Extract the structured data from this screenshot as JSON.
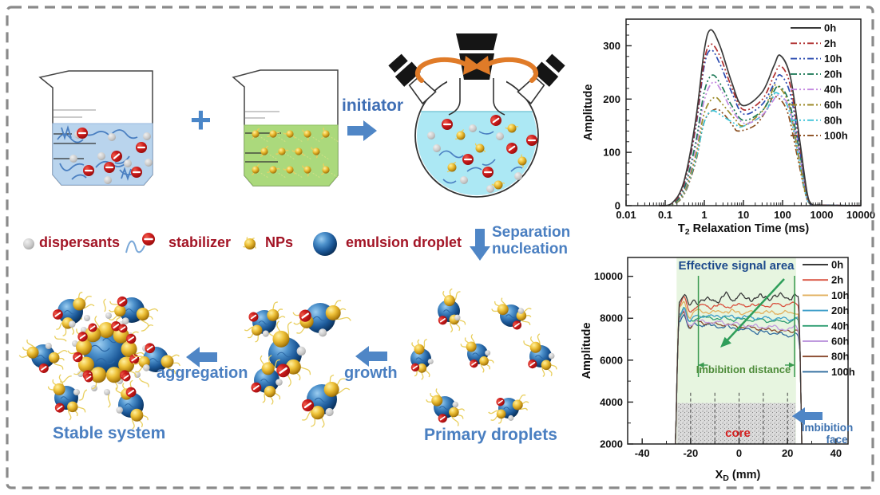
{
  "figure": {
    "border_color": "#8a8a8a",
    "background": "#ffffff"
  },
  "diagram": {
    "plus": "+",
    "initiator_label": "initiator",
    "legend": [
      {
        "label": "dispersants"
      },
      {
        "label": "stabilizer"
      },
      {
        "label": "NPs"
      },
      {
        "label": "emulsion droplet"
      }
    ],
    "separation_line1": "Separation",
    "separation_line2": "nucleation",
    "aggregation_label": "aggregation",
    "growth_label": "growth",
    "stable_system_label": "Stable system",
    "primary_droplets_label": "Primary droplets",
    "label_colors": {
      "red": "#a31526",
      "blue": "#4a7fc1",
      "arrow": "#4f86c6"
    }
  },
  "chart_data": [
    {
      "type": "line",
      "id": "t2-distribution",
      "xlabel": {
        "pre": "T",
        "sub": "2",
        "post": " Relaxation Time (ms)"
      },
      "ylabel": "Amplitude",
      "xscale": "log",
      "xlim": [
        0.01,
        10000
      ],
      "ylim": [
        0,
        350
      ],
      "xticks": [
        "0.01",
        "0.1",
        "1",
        "10",
        "100",
        "1000",
        "10000"
      ],
      "yticks": [
        0,
        100,
        200,
        300
      ],
      "grid": false,
      "legend_position": "top-right",
      "series": [
        {
          "name": "0h",
          "color": "#3a3a3a",
          "dash": "solid",
          "points": [
            [
              0.07,
              0
            ],
            [
              0.15,
              5
            ],
            [
              0.3,
              45
            ],
            [
              0.6,
              160
            ],
            [
              1.0,
              292
            ],
            [
              1.45,
              330
            ],
            [
              2.5,
              300
            ],
            [
              5,
              232
            ],
            [
              9.5,
              188
            ],
            [
              30,
              213
            ],
            [
              60,
              262
            ],
            [
              87,
              282
            ],
            [
              160,
              240
            ],
            [
              280,
              118
            ],
            [
              420,
              26
            ],
            [
              550,
              3
            ],
            [
              900,
              1
            ],
            [
              10000,
              0
            ]
          ]
        },
        {
          "name": "2h",
          "color": "#b03030",
          "dash": "dashdotdot",
          "points": [
            [
              0.07,
              0
            ],
            [
              0.15,
              4
            ],
            [
              0.3,
              40
            ],
            [
              0.6,
              150
            ],
            [
              1.0,
              272
            ],
            [
              1.5,
              303
            ],
            [
              2.6,
              278
            ],
            [
              5,
              222
            ],
            [
              10,
              180
            ],
            [
              30,
              199
            ],
            [
              60,
              243
            ],
            [
              90,
              262
            ],
            [
              160,
              224
            ],
            [
              280,
              110
            ],
            [
              420,
              24
            ],
            [
              550,
              3
            ],
            [
              900,
              1
            ],
            [
              10000,
              0
            ]
          ]
        },
        {
          "name": "10h",
          "color": "#2b4bb0",
          "dash": "dashdotdot",
          "points": [
            [
              0.07,
              0
            ],
            [
              0.15,
              4
            ],
            [
              0.3,
              38
            ],
            [
              0.6,
              145
            ],
            [
              1.0,
              263
            ],
            [
              1.5,
              292
            ],
            [
              2.5,
              266
            ],
            [
              5,
              213
            ],
            [
              10,
              172
            ],
            [
              30,
              190
            ],
            [
              60,
              228
            ],
            [
              88,
              245
            ],
            [
              160,
              208
            ],
            [
              280,
              103
            ],
            [
              420,
              22
            ],
            [
              550,
              2
            ],
            [
              900,
              1
            ],
            [
              10000,
              0
            ]
          ]
        },
        {
          "name": "20h",
          "color": "#1e7a58",
          "dash": "dashdotdot",
          "points": [
            [
              0.07,
              0
            ],
            [
              0.15,
              3
            ],
            [
              0.3,
              30
            ],
            [
              0.6,
              118
            ],
            [
              1.0,
              214
            ],
            [
              1.6,
              245
            ],
            [
              2.7,
              226
            ],
            [
              5,
              188
            ],
            [
              10,
              160
            ],
            [
              30,
              178
            ],
            [
              55,
              210
            ],
            [
              82,
              224
            ],
            [
              150,
              193
            ],
            [
              280,
              96
            ],
            [
              420,
              21
            ],
            [
              550,
              2
            ],
            [
              900,
              1
            ],
            [
              10000,
              0
            ]
          ]
        },
        {
          "name": "40h",
          "color": "#c489e0",
          "dash": "dashdotdot",
          "points": [
            [
              0.07,
              0
            ],
            [
              0.15,
              3
            ],
            [
              0.3,
              28
            ],
            [
              0.6,
              108
            ],
            [
              1.0,
              198
            ],
            [
              1.7,
              232
            ],
            [
              2.8,
              214
            ],
            [
              5,
              180
            ],
            [
              11,
              154
            ],
            [
              30,
              170
            ],
            [
              55,
              195
            ],
            [
              78,
              207
            ],
            [
              150,
              183
            ],
            [
              280,
              90
            ],
            [
              420,
              20
            ],
            [
              550,
              2
            ],
            [
              900,
              1
            ],
            [
              10000,
              0
            ]
          ]
        },
        {
          "name": "60h",
          "color": "#9c8a28",
          "dash": "dashdotdot",
          "points": [
            [
              0.07,
              0
            ],
            [
              0.15,
              2
            ],
            [
              0.3,
              24
            ],
            [
              0.6,
              94
            ],
            [
              1.0,
              174
            ],
            [
              1.8,
              203
            ],
            [
              3,
              189
            ],
            [
              6,
              163
            ],
            [
              10,
              150
            ],
            [
              30,
              177
            ],
            [
              50,
              209
            ],
            [
              68,
              226
            ],
            [
              140,
              193
            ],
            [
              260,
              92
            ],
            [
              400,
              19
            ],
            [
              550,
              2
            ],
            [
              900,
              1
            ],
            [
              10000,
              0
            ]
          ]
        },
        {
          "name": "80h",
          "color": "#3fc4d8",
          "dash": "dashdotdot",
          "points": [
            [
              0.07,
              0
            ],
            [
              0.15,
              2
            ],
            [
              0.3,
              22
            ],
            [
              0.6,
              86
            ],
            [
              1.0,
              157
            ],
            [
              1.6,
              178
            ],
            [
              3,
              167
            ],
            [
              6,
              154
            ],
            [
              9,
              148
            ],
            [
              30,
              169
            ],
            [
              50,
              194
            ],
            [
              70,
              212
            ],
            [
              140,
              183
            ],
            [
              260,
              88
            ],
            [
              400,
              18
            ],
            [
              550,
              2
            ],
            [
              900,
              1
            ],
            [
              10000,
              0
            ]
          ]
        },
        {
          "name": "100h",
          "color": "#8a4d1e",
          "dash": "dashdotdot",
          "points": [
            [
              0.07,
              0
            ],
            [
              0.15,
              2
            ],
            [
              0.3,
              20
            ],
            [
              0.6,
              82
            ],
            [
              1.0,
              158
            ],
            [
              1.9,
              181
            ],
            [
              3.2,
              171
            ],
            [
              5.5,
              149
            ],
            [
              7.5,
              140
            ],
            [
              20,
              151
            ],
            [
              40,
              181
            ],
            [
              62,
              205
            ],
            [
              130,
              178
            ],
            [
              250,
              85
            ],
            [
              400,
              17
            ],
            [
              550,
              2
            ],
            [
              900,
              1
            ],
            [
              10000,
              0
            ]
          ]
        }
      ]
    },
    {
      "type": "line",
      "id": "imbibition-profile",
      "xlabel": {
        "pre": "X",
        "sub": "D",
        "post": " (mm)"
      },
      "ylabel": "Amplitude",
      "xlim": [
        -46,
        45
      ],
      "ylim": [
        2000,
        10900
      ],
      "xticks": [
        -40,
        -20,
        0,
        20,
        40
      ],
      "yticks": [
        2000,
        4000,
        6000,
        8000,
        10000
      ],
      "grid": false,
      "legend_position": "top-right",
      "series": [
        {
          "name": "0h",
          "color": "#3a3a3a",
          "plateau_left": 8800,
          "plateau_right": 9050,
          "noise": 360
        },
        {
          "name": "2h",
          "color": "#d94f3d",
          "plateau_left": 8550,
          "plateau_right": 8650,
          "noise": 230
        },
        {
          "name": "10h",
          "color": "#e2b05f",
          "plateau_left": 8350,
          "plateau_right": 8250,
          "noise": 210
        },
        {
          "name": "20h",
          "color": "#3e9ec9",
          "plateau_left": 8150,
          "plateau_right": 7950,
          "noise": 210
        },
        {
          "name": "40h",
          "color": "#2f9e72",
          "plateau_left": 8100,
          "plateau_right": 7800,
          "noise": 200
        },
        {
          "name": "60h",
          "color": "#bf9ade",
          "plateau_left": 7950,
          "plateau_right": 7450,
          "noise": 210
        },
        {
          "name": "80h",
          "color": "#8a4a2e",
          "plateau_left": 7900,
          "plateau_right": 7320,
          "noise": 210
        },
        {
          "name": "100h",
          "color": "#2e6b9e",
          "plateau_left": 7850,
          "plateau_right": 7120,
          "noise": 220
        }
      ],
      "annotations": {
        "effective_signal_area": "Effective signal area",
        "imbibition_distance": "Imbibition distance",
        "core": "core",
        "imbibition_face_line1": "Imbibition",
        "imbibition_face_line2": "face",
        "region_x_mm": [
          -25.8,
          23.5
        ],
        "core_region": {
          "x_mm": [
            -25.5,
            23.3
          ],
          "y_top": 3950
        },
        "distance_lines_x_mm": [
          -16.8,
          22.9
        ],
        "dashed_lines_x_mm": [
          -20,
          -10,
          0,
          10,
          20
        ],
        "colors": {
          "effective": "#1d4a8c",
          "distance": "#4e8c3a",
          "core": "#d42020",
          "face": "#3a6fae",
          "region": "#e7f5e0",
          "arrow": "#2f9e5a",
          "face_arrow": "#4f86c6"
        }
      }
    }
  ]
}
